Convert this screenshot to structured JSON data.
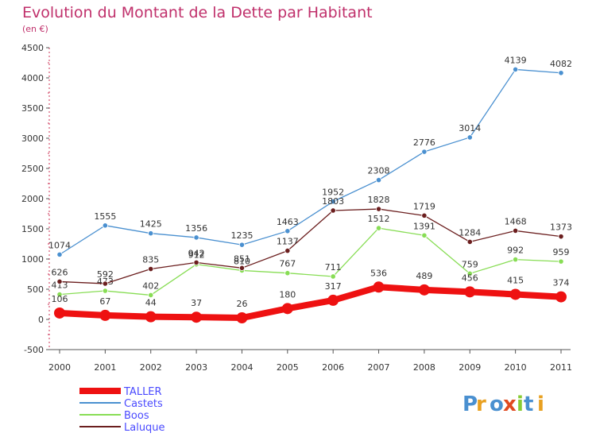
{
  "chart_data": {
    "type": "line",
    "title": "Evolution du Montant de la Dette par Habitant",
    "subtitle": "(en €)",
    "xlabel": "",
    "ylabel": "",
    "categories": [
      "2000",
      "2001",
      "2002",
      "2003",
      "2004",
      "2005",
      "2006",
      "2007",
      "2008",
      "2009",
      "2010",
      "2011"
    ],
    "ylim": [
      -500,
      4500
    ],
    "yticks": [
      -500,
      0,
      500,
      1000,
      1500,
      2000,
      2500,
      3000,
      3500,
      4000,
      4500
    ],
    "grid": false,
    "legend_position": "bottom-left",
    "series": [
      {
        "name": "TALLER",
        "color": "#ee1111",
        "values": [
          106,
          67,
          44,
          37,
          26,
          180,
          317,
          536,
          489,
          456,
          415,
          374
        ]
      },
      {
        "name": "Castets",
        "color": "#4a90d0",
        "values": [
          1074,
          1555,
          1425,
          1356,
          1235,
          1463,
          1952,
          2308,
          2776,
          3014,
          4139,
          4082
        ]
      },
      {
        "name": "Boos",
        "color": "#88dd55",
        "values": [
          413,
          473,
          402,
          912,
          810,
          767,
          711,
          1512,
          1391,
          759,
          992,
          959
        ]
      },
      {
        "name": "Laluque",
        "color": "#6b1e1e",
        "values": [
          626,
          592,
          835,
          942,
          851,
          1137,
          1803,
          1828,
          1719,
          1284,
          1468,
          1373
        ]
      }
    ]
  },
  "logo": {
    "text": "Proxiti"
  }
}
